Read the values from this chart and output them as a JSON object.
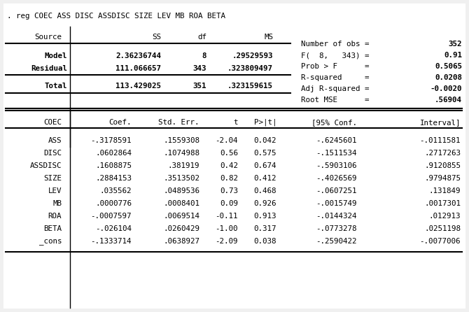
{
  "title_cmd": ". reg COEC ASS DISC ASSDISC SIZE LEV MB ROA BETA",
  "stats": [
    [
      "Number of obs =",
      "352"
    ],
    [
      "F(  8,   343) =",
      "0.91"
    ],
    [
      "Prob > F      =",
      "0.5065"
    ],
    [
      "R-squared     =",
      "0.0208"
    ],
    [
      "Adj R-squared =",
      "-0.0020"
    ],
    [
      "Root MSE      =",
      ".56904"
    ]
  ],
  "reg_rows": [
    [
      "ASS",
      "-.3178591",
      ".1559308",
      "-2.04",
      "0.042",
      "-.6245601",
      "-.0111581"
    ],
    [
      "DISC",
      ".0602864",
      ".1074988",
      "0.56",
      "0.575",
      "-.1511534",
      ".2717263"
    ],
    [
      "ASSDISC",
      ".1608875",
      ".381919",
      "0.42",
      "0.674",
      "-.5903106",
      ".9120855"
    ],
    [
      "SIZE",
      ".2884153",
      ".3513502",
      "0.82",
      "0.412",
      "-.4026569",
      ".9794875"
    ],
    [
      "LEV",
      ".035562",
      ".0489536",
      "0.73",
      "0.468",
      "-.0607251",
      ".131849"
    ],
    [
      "MB",
      ".0000776",
      ".0008401",
      "0.09",
      "0.926",
      "-.0015749",
      ".0017301"
    ],
    [
      "ROA",
      "-.0007597",
      ".0069514",
      "-0.11",
      "0.913",
      "-.0144324",
      ".012913"
    ],
    [
      "BETA",
      "-.026104",
      ".0260429",
      "-1.00",
      "0.317",
      "-.0773278",
      ".0251198"
    ],
    [
      "_cons",
      "-.1333714",
      ".0638927",
      "-2.09",
      "0.038",
      "-.2590422",
      "-.0077006"
    ]
  ],
  "bg_color": "#f0f0f0",
  "text_color": "#000000",
  "font_size": 7.8
}
